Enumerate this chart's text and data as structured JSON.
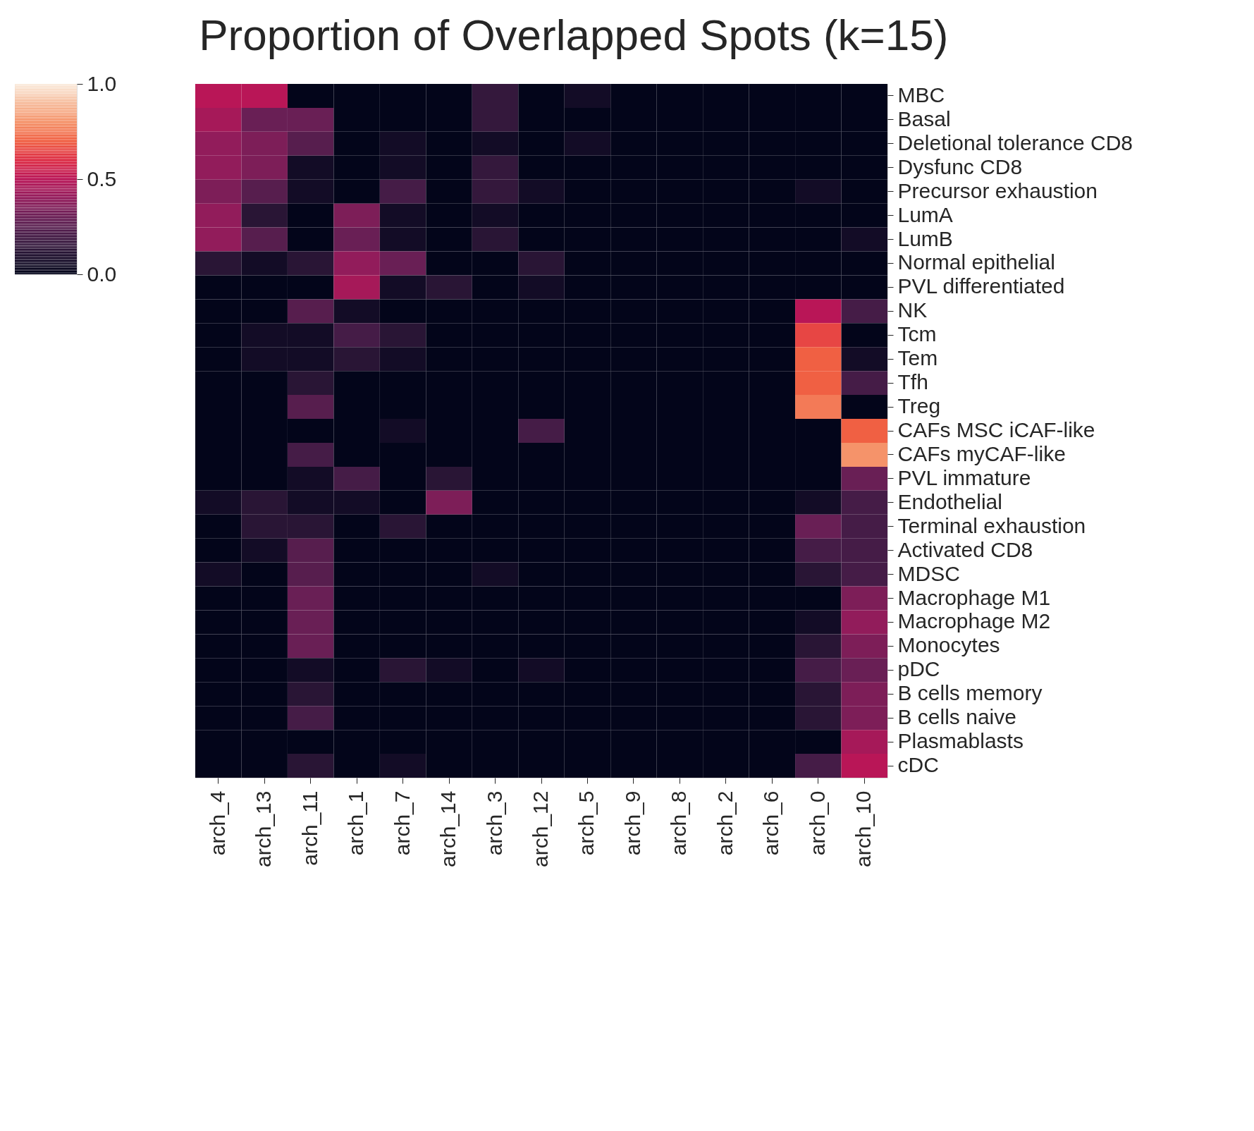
{
  "chart_data": {
    "type": "heatmap",
    "title": "Proportion of Overlapped Spots (k=15)",
    "categories": [
      "arch_4",
      "arch_13",
      "arch_11",
      "arch_1",
      "arch_7",
      "arch_14",
      "arch_3",
      "arch_12",
      "arch_5",
      "arch_9",
      "arch_8",
      "arch_2",
      "arch_6",
      "arch_0",
      "arch_10"
    ],
    "y_categories": [
      "MBC",
      "Basal",
      "Deletional tolerance CD8",
      "Dysfunc CD8",
      "Precursor exhaustion",
      "LumA",
      "LumB",
      "Normal epithelial",
      "PVL differentiated",
      "NK",
      "Tcm",
      "Tem",
      "Tfh",
      "Treg",
      "CAFs MSC iCAF-like",
      "CAFs myCAF-like",
      "PVL immature",
      "Endothelial",
      "Terminal exhaustion",
      "Activated CD8",
      "MDSC",
      "Macrophage M1",
      "Macrophage M2",
      "Monocytes",
      "pDC",
      "B cells memory",
      "B cells naive",
      "Plasmablasts",
      "cDC"
    ],
    "cells": [
      [
        0.5,
        0.5,
        0,
        0,
        0,
        0,
        0.15,
        0,
        0.05,
        0,
        0,
        0,
        0,
        0,
        0
      ],
      [
        0.45,
        0.3,
        0.3,
        0,
        0,
        0,
        0.15,
        0,
        0,
        0,
        0,
        0,
        0,
        0,
        0
      ],
      [
        0.4,
        0.35,
        0.25,
        0,
        0.05,
        0,
        0.05,
        0,
        0.05,
        0,
        0,
        0,
        0,
        0,
        0
      ],
      [
        0.4,
        0.35,
        0.05,
        0,
        0.05,
        0,
        0.15,
        0,
        0,
        0,
        0,
        0,
        0,
        0,
        0
      ],
      [
        0.35,
        0.25,
        0.05,
        0,
        0.2,
        0,
        0.15,
        0.05,
        0,
        0,
        0,
        0,
        0,
        0.05,
        0
      ],
      [
        0.4,
        0.12,
        0,
        0.35,
        0.05,
        0,
        0.05,
        0,
        0,
        0,
        0,
        0,
        0,
        0,
        0
      ],
      [
        0.4,
        0.25,
        0,
        0.3,
        0.05,
        0,
        0.12,
        0,
        0,
        0,
        0,
        0,
        0,
        0,
        0.05
      ],
      [
        0.12,
        0.05,
        0.12,
        0.4,
        0.3,
        0,
        0,
        0.12,
        0,
        0,
        0,
        0,
        0,
        0,
        0
      ],
      [
        0,
        0,
        0,
        0.45,
        0.05,
        0.12,
        0,
        0.05,
        0,
        0,
        0,
        0,
        0,
        0,
        0
      ],
      [
        0,
        0,
        0.25,
        0.05,
        0,
        0,
        0,
        0,
        0,
        0,
        0,
        0,
        0,
        0.5,
        0.2
      ],
      [
        0,
        0.05,
        0.05,
        0.2,
        0.12,
        0,
        0,
        0,
        0,
        0,
        0,
        0,
        0,
        0.65,
        0
      ],
      [
        0,
        0.05,
        0.05,
        0.12,
        0.05,
        0,
        0,
        0,
        0,
        0,
        0,
        0,
        0,
        0.7,
        0.05
      ],
      [
        0,
        0,
        0.12,
        0,
        0,
        0,
        0,
        0,
        0,
        0,
        0,
        0,
        0,
        0.7,
        0.2
      ],
      [
        0,
        0,
        0.25,
        0,
        0,
        0,
        0,
        0,
        0,
        0,
        0,
        0,
        0,
        0.75,
        0
      ],
      [
        0,
        0,
        0,
        0,
        0.05,
        0,
        0,
        0.2,
        0,
        0,
        0,
        0,
        0,
        0,
        0.7
      ],
      [
        0,
        0,
        0.2,
        0,
        0,
        0,
        0,
        0,
        0,
        0,
        0,
        0,
        0,
        0,
        0.8
      ],
      [
        0,
        0,
        0.05,
        0.2,
        0,
        0.12,
        0,
        0,
        0,
        0,
        0,
        0,
        0,
        0,
        0.3
      ],
      [
        0.05,
        0.12,
        0.05,
        0.05,
        0,
        0.35,
        0,
        0,
        0,
        0,
        0,
        0,
        0,
        0.05,
        0.2
      ],
      [
        0,
        0.12,
        0.12,
        0,
        0.12,
        0,
        0,
        0,
        0,
        0,
        0,
        0,
        0,
        0.3,
        0.2
      ],
      [
        0,
        0.05,
        0.25,
        0,
        0,
        0,
        0,
        0,
        0,
        0,
        0,
        0,
        0,
        0.2,
        0.2
      ],
      [
        0.05,
        0,
        0.25,
        0,
        0,
        0,
        0.05,
        0,
        0,
        0,
        0,
        0,
        0,
        0.12,
        0.2
      ],
      [
        0,
        0,
        0.3,
        0,
        0,
        0,
        0,
        0,
        0,
        0,
        0,
        0,
        0,
        0,
        0.35
      ],
      [
        0,
        0,
        0.3,
        0,
        0,
        0,
        0,
        0,
        0,
        0,
        0,
        0,
        0,
        0.05,
        0.4
      ],
      [
        0,
        0,
        0.3,
        0,
        0,
        0,
        0,
        0,
        0,
        0,
        0,
        0,
        0,
        0.12,
        0.35
      ],
      [
        0,
        0,
        0.05,
        0,
        0.12,
        0.05,
        0,
        0.05,
        0,
        0,
        0,
        0,
        0,
        0.2,
        0.3
      ],
      [
        0,
        0,
        0.12,
        0,
        0,
        0,
        0,
        0,
        0,
        0,
        0,
        0,
        0,
        0.12,
        0.35
      ],
      [
        0,
        0,
        0.2,
        0,
        0,
        0,
        0,
        0,
        0,
        0,
        0,
        0,
        0,
        0.12,
        0.35
      ],
      [
        0,
        0,
        0,
        0,
        0,
        0,
        0,
        0,
        0,
        0,
        0,
        0,
        0,
        0,
        0.45
      ],
      [
        0,
        0,
        0.12,
        0,
        0.05,
        0,
        0,
        0,
        0,
        0,
        0,
        0,
        0,
        0.2,
        0.5
      ]
    ],
    "clim": [
      0,
      1.0
    ],
    "cticks": [
      {
        "value": 0,
        "label": "0.0"
      },
      0.5,
      {
        "value": 1.0,
        "label": "1.0"
      }
    ]
  }
}
